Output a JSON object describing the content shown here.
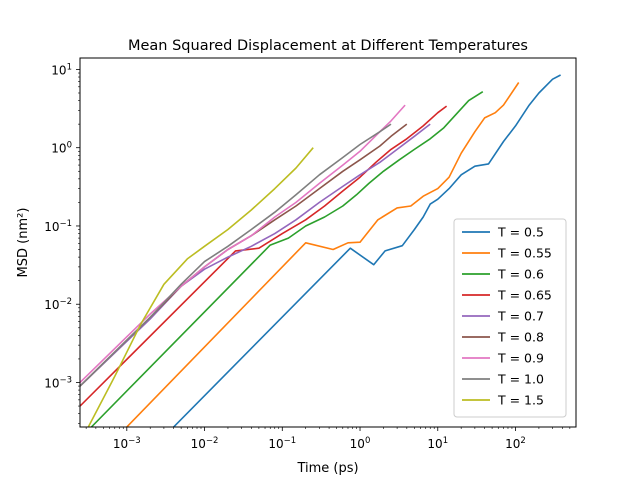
{
  "chart_data": {
    "type": "line",
    "title": "Mean Squared Displacement at Different Temperatures",
    "xlabel": "Time (ps)",
    "ylabel": "MSD (nm²)",
    "xscale": "log",
    "yscale": "log",
    "xlim": [
      0.00025,
      600
    ],
    "ylim": [
      0.00027,
      14
    ],
    "grid": false,
    "legend_position": "lower right",
    "x_ticks": [
      {
        "value": 0.001,
        "base": "10",
        "exp": "−3"
      },
      {
        "value": 0.01,
        "base": "10",
        "exp": "−2"
      },
      {
        "value": 0.1,
        "base": "10",
        "exp": "−1"
      },
      {
        "value": 1,
        "base": "10",
        "exp": "0"
      },
      {
        "value": 10,
        "base": "10",
        "exp": "1"
      },
      {
        "value": 100,
        "base": "10",
        "exp": "2"
      }
    ],
    "y_ticks": [
      {
        "value": 0.001,
        "base": "10",
        "exp": "−3"
      },
      {
        "value": 0.01,
        "base": "10",
        "exp": "−2"
      },
      {
        "value": 0.1,
        "base": "10",
        "exp": "−1"
      },
      {
        "value": 1,
        "base": "10",
        "exp": "0"
      },
      {
        "value": 10,
        "base": "10",
        "exp": "1"
      }
    ],
    "series": [
      {
        "name": "T = 0.5",
        "color": "#1f77b4",
        "x": [
          0.004,
          0.75,
          1.5,
          2.1,
          3.5,
          5.0,
          6.5,
          8.0,
          10,
          14,
          20,
          30,
          45,
          70,
          100,
          150,
          200,
          300,
          380
        ],
        "y": [
          0.00027,
          0.052,
          0.032,
          0.048,
          0.056,
          0.09,
          0.13,
          0.19,
          0.22,
          0.3,
          0.45,
          0.58,
          0.62,
          1.2,
          1.9,
          3.5,
          5.0,
          7.5,
          8.5
        ]
      },
      {
        "name": "T = 0.55",
        "color": "#ff7f0e",
        "x": [
          0.001,
          0.2,
          0.45,
          0.7,
          1.0,
          1.7,
          3.0,
          4.5,
          6.5,
          10,
          14,
          20,
          30,
          40,
          55,
          70,
          110
        ],
        "y": [
          0.00027,
          0.061,
          0.05,
          0.061,
          0.062,
          0.12,
          0.17,
          0.18,
          0.24,
          0.3,
          0.42,
          0.85,
          1.6,
          2.4,
          2.8,
          3.5,
          6.8
        ]
      },
      {
        "name": "T = 0.6",
        "color": "#2ca02c",
        "x": [
          0.00035,
          0.07,
          0.12,
          0.2,
          0.35,
          0.6,
          0.9,
          1.3,
          2.0,
          3.2,
          5.0,
          8.0,
          12,
          18,
          25,
          38
        ],
        "y": [
          0.00027,
          0.057,
          0.07,
          0.1,
          0.13,
          0.18,
          0.25,
          0.35,
          0.5,
          0.7,
          0.95,
          1.3,
          1.8,
          2.8,
          4.0,
          5.2
        ]
      },
      {
        "name": "T = 0.65",
        "color": "#d62728",
        "x": [
          0.00025,
          0.025,
          0.05,
          0.1,
          0.2,
          0.35,
          0.6,
          1.0,
          1.6,
          2.5,
          4.0,
          6.5,
          10,
          13
        ],
        "y": [
          0.0005,
          0.048,
          0.052,
          0.08,
          0.12,
          0.18,
          0.28,
          0.42,
          0.65,
          0.95,
          1.3,
          1.9,
          2.8,
          3.4
        ]
      },
      {
        "name": "T = 0.7",
        "color": "#9467bd",
        "x": [
          0.00025,
          0.002,
          0.005,
          0.01,
          0.02,
          0.04,
          0.08,
          0.15,
          0.3,
          0.6,
          1.0,
          1.8,
          3.0,
          5.0,
          8.0
        ],
        "y": [
          0.0009,
          0.0065,
          0.017,
          0.028,
          0.04,
          0.055,
          0.08,
          0.12,
          0.2,
          0.32,
          0.45,
          0.65,
          0.95,
          1.4,
          2.0
        ]
      },
      {
        "name": "T = 0.8",
        "color": "#8c564b",
        "x": [
          0.00025,
          0.002,
          0.005,
          0.01,
          0.02,
          0.04,
          0.08,
          0.15,
          0.3,
          0.6,
          1.0,
          1.8,
          2.5,
          4.0
        ],
        "y": [
          0.0009,
          0.0068,
          0.017,
          0.03,
          0.05,
          0.075,
          0.12,
          0.18,
          0.3,
          0.5,
          0.7,
          1.05,
          1.4,
          2.0
        ]
      },
      {
        "name": "T = 0.9",
        "color": "#e377c2",
        "x": [
          0.00025,
          0.002,
          0.005,
          0.01,
          0.02,
          0.04,
          0.08,
          0.15,
          0.3,
          0.6,
          1.0,
          1.8,
          2.5,
          3.8
        ],
        "y": [
          0.001,
          0.0075,
          0.017,
          0.03,
          0.05,
          0.075,
          0.13,
          0.2,
          0.35,
          0.6,
          0.9,
          1.6,
          2.2,
          3.5
        ]
      },
      {
        "name": "T = 1.0",
        "color": "#7f7f7f",
        "x": [
          0.00025,
          0.002,
          0.005,
          0.01,
          0.02,
          0.04,
          0.08,
          0.15,
          0.3,
          0.6,
          1.0,
          1.8,
          2.5
        ],
        "y": [
          0.0009,
          0.0068,
          0.018,
          0.035,
          0.055,
          0.09,
          0.15,
          0.25,
          0.45,
          0.75,
          1.1,
          1.6,
          2.0
        ]
      },
      {
        "name": "T = 1.5",
        "color": "#bcbd22",
        "x": [
          0.00032,
          0.0007,
          0.0015,
          0.003,
          0.006,
          0.01,
          0.02,
          0.04,
          0.08,
          0.15,
          0.25
        ],
        "y": [
          0.00027,
          0.0012,
          0.0055,
          0.018,
          0.038,
          0.055,
          0.09,
          0.16,
          0.3,
          0.55,
          1.0
        ]
      }
    ]
  }
}
